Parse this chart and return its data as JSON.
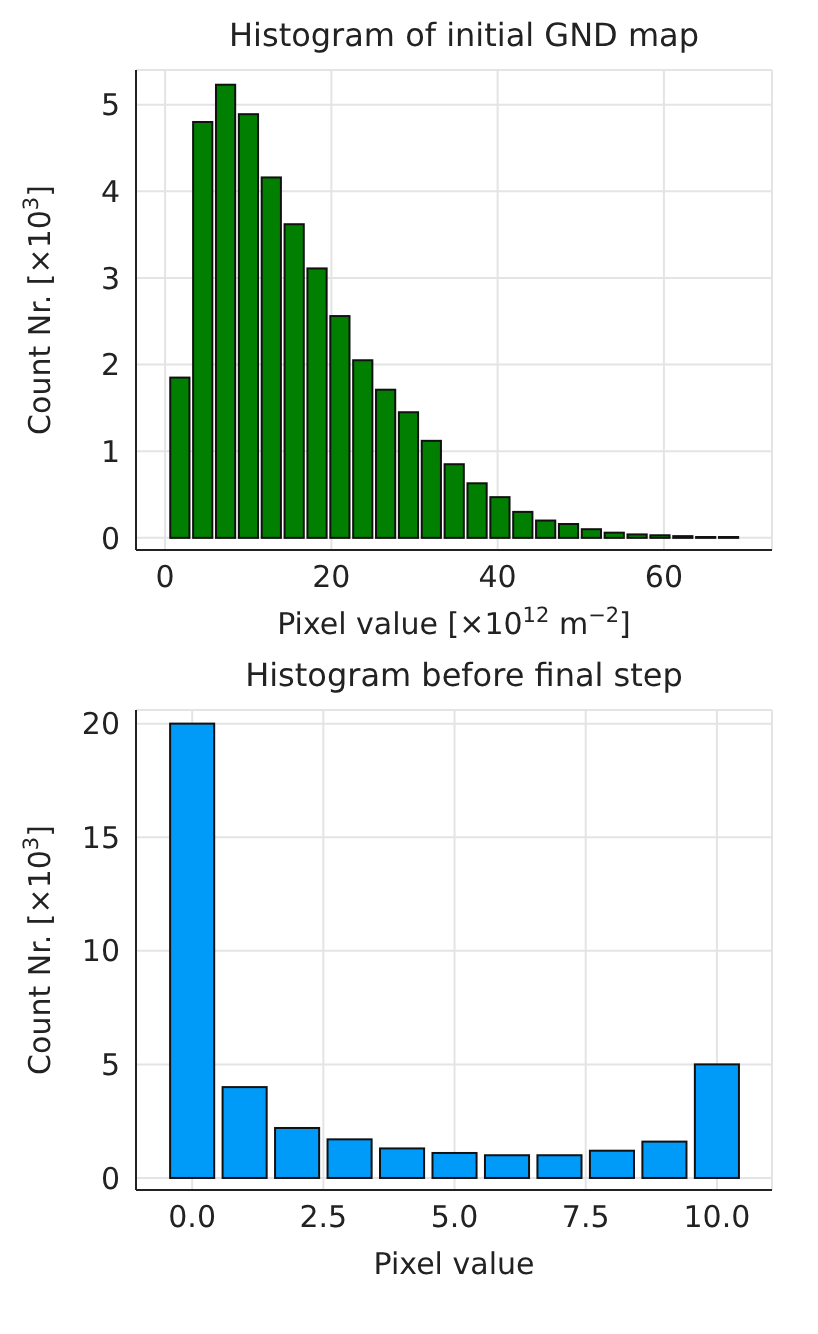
{
  "chart_data": [
    {
      "type": "histogram",
      "title": "Histogram of initial GND map",
      "xlabel": "Pixel value [×10$^{12}$ m$^{−2}$]",
      "ylabel": "Count Nr. [×10$^{3}$]",
      "bins": [
        0.4,
        3.15,
        5.9,
        8.65,
        11.4,
        14.15,
        16.9,
        19.65,
        22.4,
        25.15,
        27.9,
        30.65,
        33.4,
        36.15,
        38.9,
        41.65,
        44.4,
        47.15,
        49.9,
        52.65,
        55.4,
        58.15,
        60.9,
        63.65,
        66.4,
        69.15
      ],
      "values": [
        1.85,
        4.8,
        5.23,
        4.89,
        4.16,
        3.62,
        3.11,
        2.56,
        2.05,
        1.71,
        1.45,
        1.12,
        0.85,
        0.63,
        0.47,
        0.3,
        0.2,
        0.16,
        0.1,
        0.06,
        0.04,
        0.03,
        0.02,
        0.01,
        0.01
      ],
      "color": "#007f00",
      "xlim": [
        -3.5,
        73
      ],
      "xticks": [
        0,
        20,
        40,
        60
      ],
      "ylim": [
        -0.14,
        5.4
      ],
      "yticks": [
        0,
        1,
        2,
        3,
        4,
        5
      ],
      "grid": true,
      "legend": false
    },
    {
      "type": "histogram",
      "title": "Histogram before final step",
      "xlabel": "Pixel value",
      "ylabel": "Count Nr. [×10$^{3}$]",
      "bins": [
        -0.5,
        0.5,
        1.5,
        2.5,
        3.5,
        4.5,
        5.5,
        6.5,
        7.5,
        8.5,
        9.5,
        10.5
      ],
      "values": [
        20.0,
        4.0,
        2.2,
        1.7,
        1.3,
        1.1,
        1.0,
        1.0,
        1.2,
        1.6,
        5.0
      ],
      "color": "#009af9",
      "xlim": [
        -1.07,
        11.05
      ],
      "xticks": [
        {
          "value": 0,
          "label": "0.0"
        },
        {
          "value": 2.5,
          "label": "2.5"
        },
        {
          "value": 5,
          "label": "5.0"
        },
        {
          "value": 7.5,
          "label": "7.5"
        },
        {
          "value": 10,
          "label": "10.0"
        }
      ],
      "ylim": [
        -0.53,
        20.6
      ],
      "yticks": [
        0,
        5,
        10,
        15,
        20
      ],
      "grid": true,
      "legend": false
    }
  ]
}
